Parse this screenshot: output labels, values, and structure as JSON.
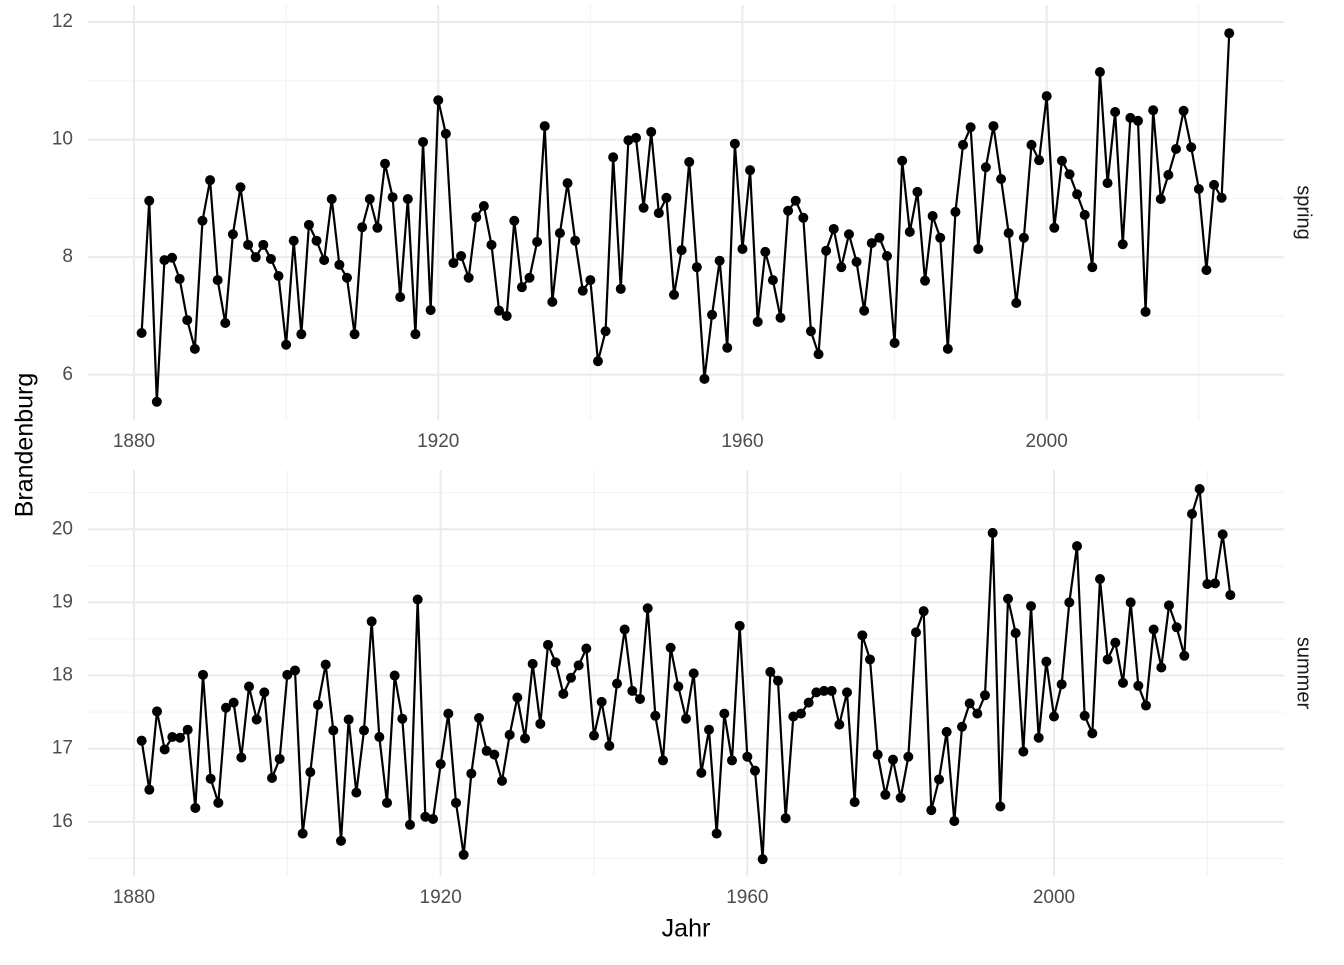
{
  "chart_data": [
    {
      "type": "line",
      "facet": "spring",
      "y_label": "Brandenburg",
      "color": "#000000",
      "grid": true,
      "x": [
        1881,
        1882,
        1883,
        1884,
        1885,
        1886,
        1887,
        1888,
        1889,
        1890,
        1891,
        1892,
        1893,
        1894,
        1895,
        1896,
        1897,
        1898,
        1899,
        1900,
        1901,
        1902,
        1903,
        1904,
        1905,
        1906,
        1907,
        1908,
        1909,
        1910,
        1911,
        1912,
        1913,
        1914,
        1915,
        1916,
        1917,
        1918,
        1919,
        1920,
        1921,
        1922,
        1923,
        1924,
        1925,
        1926,
        1927,
        1928,
        1929,
        1930,
        1931,
        1932,
        1933,
        1934,
        1935,
        1936,
        1937,
        1938,
        1939,
        1940,
        1941,
        1942,
        1943,
        1944,
        1945,
        1946,
        1947,
        1948,
        1949,
        1950,
        1951,
        1952,
        1953,
        1954,
        1955,
        1956,
        1957,
        1958,
        1959,
        1960,
        1961,
        1962,
        1963,
        1964,
        1965,
        1966,
        1967,
        1968,
        1969,
        1970,
        1971,
        1972,
        1973,
        1974,
        1975,
        1976,
        1977,
        1978,
        1979,
        1980,
        1981,
        1982,
        1983,
        1984,
        1985,
        1986,
        1987,
        1988,
        1989,
        1990,
        1991,
        1992,
        1993,
        1994,
        1995,
        1996,
        1997,
        1998,
        1999,
        2000,
        2001,
        2002,
        2003,
        2004,
        2005,
        2006,
        2007,
        2008,
        2009,
        2010,
        2011,
        2012,
        2013,
        2014,
        2015,
        2016,
        2017,
        2018,
        2019,
        2020,
        2021,
        2022,
        2023,
        2024
      ],
      "values": [
        6.71,
        8.96,
        5.54,
        7.95,
        7.99,
        7.63,
        6.93,
        6.44,
        8.62,
        9.31,
        7.61,
        6.88,
        8.39,
        9.19,
        8.21,
        8.0,
        8.21,
        7.97,
        7.68,
        6.51,
        8.28,
        6.69,
        8.55,
        8.28,
        7.95,
        8.99,
        7.87,
        7.65,
        6.69,
        8.51,
        8.99,
        8.5,
        9.59,
        9.02,
        7.32,
        8.99,
        6.69,
        9.96,
        7.1,
        10.67,
        10.1,
        7.9,
        8.02,
        7.65,
        8.68,
        8.87,
        8.21,
        7.09,
        7.0,
        8.62,
        7.49,
        7.65,
        8.26,
        10.23,
        7.24,
        8.41,
        9.26,
        8.28,
        7.43,
        7.61,
        6.23,
        6.74,
        9.7,
        7.46,
        9.99,
        10.03,
        8.84,
        10.13,
        8.75,
        9.01,
        7.36,
        8.12,
        9.62,
        7.83,
        5.93,
        7.02,
        7.94,
        6.46,
        9.93,
        8.14,
        9.48,
        6.9,
        8.09,
        7.61,
        6.97,
        8.79,
        8.96,
        8.67,
        6.74,
        6.35,
        8.11,
        8.48,
        7.83,
        8.39,
        7.92,
        7.09,
        8.24,
        8.33,
        8.02,
        6.54,
        9.64,
        8.43,
        9.11,
        7.6,
        8.7,
        8.33,
        6.44,
        8.77,
        9.91,
        10.21,
        8.14,
        9.53,
        10.23,
        9.33,
        8.41,
        7.22,
        8.33,
        9.91,
        9.65,
        10.74,
        8.5,
        9.64,
        9.41,
        9.07,
        8.72,
        7.83,
        11.15,
        9.26,
        10.47,
        8.22,
        10.37,
        10.32,
        7.07,
        10.5,
        8.99,
        9.4,
        9.84,
        10.49,
        9.87,
        9.16,
        7.78,
        9.23,
        9.01,
        11.81
      ],
      "xlim": [
        1873.95,
        2031.2
      ],
      "xticks": [
        1880,
        1920,
        1960,
        2000
      ],
      "x_minor_ticks": [
        1900,
        1940,
        1980,
        2020
      ],
      "ylim": [
        5.23,
        12.29
      ],
      "yticks": [
        6,
        8,
        10,
        12
      ],
      "y_minor_ticks": [
        7,
        9,
        11
      ]
    },
    {
      "type": "line",
      "facet": "summer",
      "x_label": "Jahr",
      "color": "#000000",
      "grid": true,
      "x": [
        1881,
        1882,
        1883,
        1884,
        1885,
        1886,
        1887,
        1888,
        1889,
        1890,
        1891,
        1892,
        1893,
        1894,
        1895,
        1896,
        1897,
        1898,
        1899,
        1900,
        1901,
        1902,
        1903,
        1904,
        1905,
        1906,
        1907,
        1908,
        1909,
        1910,
        1911,
        1912,
        1913,
        1914,
        1915,
        1916,
        1917,
        1918,
        1919,
        1920,
        1921,
        1922,
        1923,
        1924,
        1925,
        1926,
        1927,
        1928,
        1929,
        1930,
        1931,
        1932,
        1933,
        1934,
        1935,
        1936,
        1937,
        1938,
        1939,
        1940,
        1941,
        1942,
        1943,
        1944,
        1945,
        1946,
        1947,
        1948,
        1949,
        1950,
        1951,
        1952,
        1953,
        1954,
        1955,
        1956,
        1957,
        1958,
        1959,
        1960,
        1961,
        1962,
        1963,
        1964,
        1965,
        1966,
        1967,
        1968,
        1969,
        1970,
        1971,
        1972,
        1973,
        1974,
        1975,
        1976,
        1977,
        1978,
        1979,
        1980,
        1981,
        1982,
        1983,
        1984,
        1985,
        1986,
        1987,
        1988,
        1989,
        1990,
        1991,
        1992,
        1993,
        1994,
        1995,
        1996,
        1997,
        1998,
        1999,
        2000,
        2001,
        2002,
        2003,
        2004,
        2005,
        2006,
        2007,
        2008,
        2009,
        2010,
        2011,
        2012,
        2013,
        2014,
        2015,
        2016,
        2017,
        2018,
        2019,
        2020,
        2021,
        2022,
        2023
      ],
      "values": [
        17.11,
        16.44,
        17.51,
        16.99,
        17.16,
        17.15,
        17.26,
        16.19,
        18.01,
        16.59,
        16.26,
        17.56,
        17.63,
        16.88,
        17.85,
        17.4,
        17.77,
        16.6,
        16.86,
        18.01,
        18.07,
        15.84,
        16.68,
        17.6,
        18.15,
        17.25,
        15.74,
        17.4,
        16.4,
        17.25,
        18.74,
        17.16,
        16.26,
        18.0,
        17.41,
        15.96,
        19.04,
        16.07,
        16.04,
        16.79,
        17.48,
        16.26,
        15.55,
        16.66,
        17.42,
        16.97,
        16.92,
        16.56,
        17.19,
        17.7,
        17.14,
        18.16,
        17.34,
        18.42,
        18.18,
        17.75,
        17.97,
        18.14,
        18.37,
        17.18,
        17.64,
        17.04,
        17.89,
        18.63,
        17.79,
        17.68,
        18.92,
        17.45,
        16.84,
        18.38,
        17.85,
        17.41,
        18.03,
        16.67,
        17.26,
        15.84,
        17.48,
        16.84,
        18.68,
        16.89,
        16.7,
        15.49,
        18.05,
        17.93,
        16.05,
        17.44,
        17.48,
        17.63,
        17.77,
        17.79,
        17.79,
        17.33,
        17.77,
        16.27,
        18.55,
        18.22,
        16.92,
        16.37,
        16.85,
        16.33,
        16.89,
        18.59,
        18.88,
        16.16,
        16.58,
        17.23,
        16.01,
        17.3,
        17.62,
        17.48,
        17.73,
        19.95,
        16.21,
        19.05,
        18.58,
        16.96,
        18.95,
        17.15,
        18.19,
        17.44,
        17.88,
        19.0,
        19.77,
        17.45,
        17.21,
        19.32,
        18.22,
        18.45,
        17.9,
        19.0,
        17.86,
        17.59,
        18.63,
        18.11,
        18.96,
        18.66,
        18.27,
        20.21,
        20.55,
        19.25,
        19.26,
        19.93,
        19.1
      ],
      "xlim": [
        1874,
        2030
      ],
      "xticks": [
        1880,
        1920,
        1960,
        2000
      ],
      "x_minor_ticks": [
        1900,
        1940,
        1980,
        2020
      ],
      "ylim": [
        15.26,
        20.81
      ],
      "yticks": [
        16,
        17,
        18,
        19,
        20
      ],
      "y_minor_ticks": [
        15.5,
        16.5,
        17.5,
        18.5,
        19.5,
        20.5
      ]
    }
  ]
}
